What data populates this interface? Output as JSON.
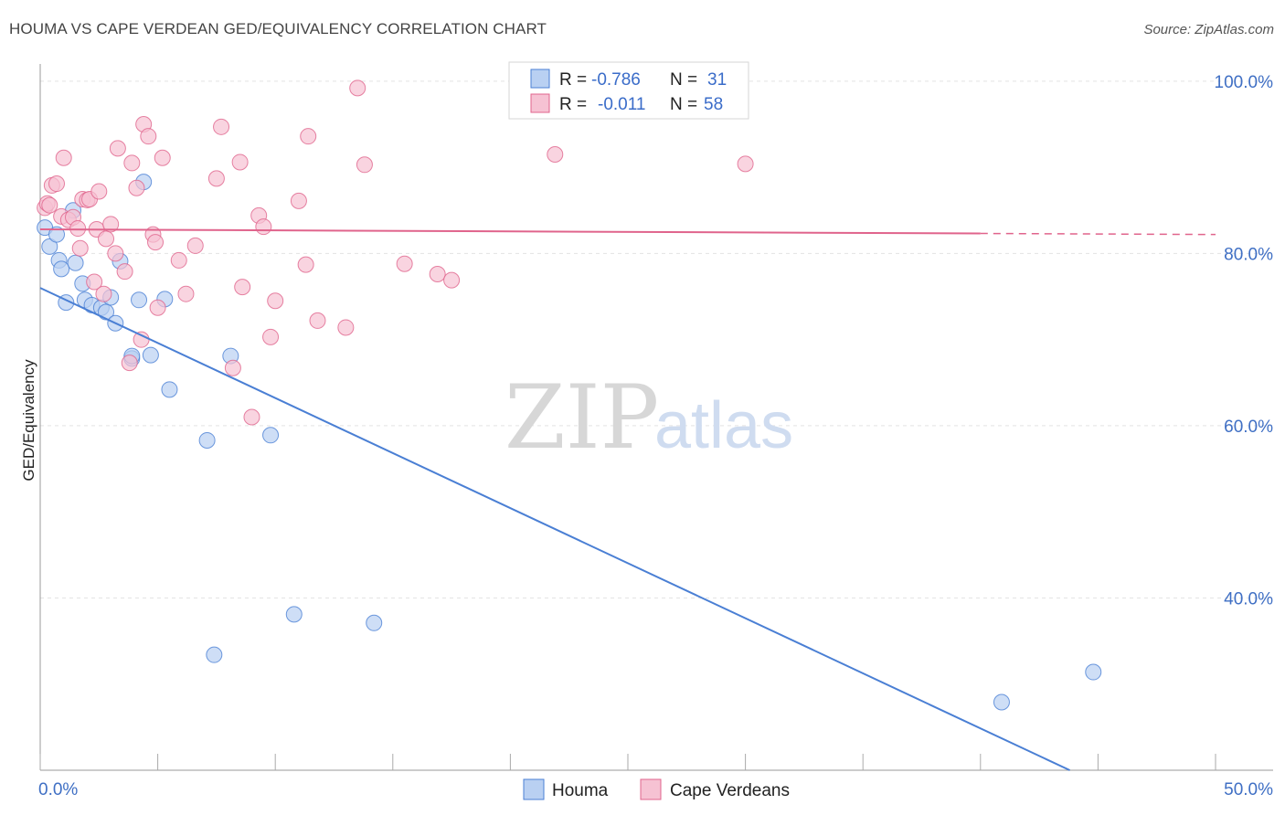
{
  "title": "HOUMA VS CAPE VERDEAN GED/EQUIVALENCY CORRELATION CHART",
  "source": "Source: ZipAtlas.com",
  "watermark": {
    "zip": "ZIP",
    "atlas": "atlas"
  },
  "chart_data": {
    "type": "scatter",
    "ylabel": "GED/Equivalency",
    "xlim": [
      0,
      50
    ],
    "ylim": [
      20,
      102
    ],
    "x_tick_labels": [
      {
        "value": 0,
        "label": "0.0%"
      },
      {
        "value": 50,
        "label": "50.0%"
      }
    ],
    "y_tick_labels": [
      {
        "value": 100,
        "label": "100.0%"
      },
      {
        "value": 80,
        "label": "80.0%"
      },
      {
        "value": 60,
        "label": "60.0%"
      },
      {
        "value": 40,
        "label": "40.0%"
      }
    ],
    "legend": [
      {
        "series": "Houma",
        "r_label": "R = ",
        "r_value": "-0.786",
        "n_label": "N = ",
        "n_value": "31"
      },
      {
        "series": "Cape Verdeans",
        "r_label": "R = ",
        "r_value": "-0.011",
        "n_label": "N = ",
        "n_value": "58"
      }
    ],
    "series": [
      {
        "name": "Houma",
        "color": "#4a7fd4",
        "fill": "#b9d0f2",
        "trend": {
          "x0": 0,
          "y0": 76.0,
          "x1": 43.8,
          "y1": 20.0,
          "dashed_from": null
        },
        "points": [
          [
            0.2,
            83.0
          ],
          [
            0.4,
            80.8
          ],
          [
            0.7,
            82.2
          ],
          [
            0.8,
            79.2
          ],
          [
            0.9,
            78.2
          ],
          [
            1.1,
            74.3
          ],
          [
            1.4,
            85.0
          ],
          [
            1.5,
            78.9
          ],
          [
            1.8,
            76.5
          ],
          [
            1.9,
            74.6
          ],
          [
            2.2,
            74.0
          ],
          [
            2.6,
            73.7
          ],
          [
            2.8,
            73.2
          ],
          [
            3.0,
            74.9
          ],
          [
            3.2,
            71.9
          ],
          [
            3.4,
            79.1
          ],
          [
            3.9,
            67.8
          ],
          [
            3.9,
            68.1
          ],
          [
            4.2,
            74.6
          ],
          [
            4.4,
            88.3
          ],
          [
            4.7,
            68.2
          ],
          [
            5.3,
            74.7
          ],
          [
            5.5,
            64.2
          ],
          [
            7.1,
            58.3
          ],
          [
            7.4,
            33.4
          ],
          [
            8.1,
            68.1
          ],
          [
            9.8,
            58.9
          ],
          [
            10.8,
            38.1
          ],
          [
            14.2,
            37.1
          ],
          [
            40.9,
            27.9
          ],
          [
            44.8,
            31.4
          ]
        ]
      },
      {
        "name": "Cape Verdeans",
        "color": "#e0648c",
        "fill": "#f6c2d3",
        "trend": {
          "x0": 0,
          "y0": 82.8,
          "x1": 50,
          "y1": 82.2,
          "dashed_from": 40.0
        },
        "points": [
          [
            0.2,
            85.3
          ],
          [
            0.3,
            85.8
          ],
          [
            0.4,
            85.6
          ],
          [
            0.5,
            87.9
          ],
          [
            0.7,
            88.1
          ],
          [
            0.9,
            84.3
          ],
          [
            1.0,
            91.1
          ],
          [
            1.2,
            83.9
          ],
          [
            1.4,
            84.2
          ],
          [
            1.6,
            82.9
          ],
          [
            1.7,
            80.6
          ],
          [
            1.8,
            86.3
          ],
          [
            2.0,
            86.2
          ],
          [
            2.1,
            86.3
          ],
          [
            2.3,
            76.7
          ],
          [
            2.4,
            82.8
          ],
          [
            2.5,
            87.2
          ],
          [
            2.7,
            75.3
          ],
          [
            2.8,
            81.7
          ],
          [
            3.0,
            83.4
          ],
          [
            3.2,
            80.0
          ],
          [
            3.3,
            92.2
          ],
          [
            3.6,
            77.9
          ],
          [
            3.8,
            67.3
          ],
          [
            3.9,
            90.5
          ],
          [
            4.1,
            87.6
          ],
          [
            4.3,
            70.0
          ],
          [
            4.4,
            95.0
          ],
          [
            4.6,
            93.6
          ],
          [
            4.8,
            82.2
          ],
          [
            4.9,
            81.3
          ],
          [
            5.0,
            73.7
          ],
          [
            5.2,
            91.1
          ],
          [
            5.9,
            79.2
          ],
          [
            6.2,
            75.3
          ],
          [
            6.6,
            80.9
          ],
          [
            7.5,
            88.7
          ],
          [
            7.7,
            94.7
          ],
          [
            8.2,
            66.7
          ],
          [
            8.5,
            90.6
          ],
          [
            8.6,
            76.1
          ],
          [
            9.0,
            61.0
          ],
          [
            9.3,
            84.4
          ],
          [
            9.5,
            83.1
          ],
          [
            9.8,
            70.3
          ],
          [
            10.0,
            74.5
          ],
          [
            11.0,
            86.1
          ],
          [
            11.3,
            78.7
          ],
          [
            11.4,
            93.6
          ],
          [
            11.8,
            72.2
          ],
          [
            13.0,
            71.4
          ],
          [
            13.5,
            99.2
          ],
          [
            13.8,
            90.3
          ],
          [
            15.5,
            78.8
          ],
          [
            16.9,
            77.6
          ],
          [
            17.5,
            76.9
          ],
          [
            21.9,
            91.5
          ],
          [
            30.0,
            90.4
          ]
        ]
      }
    ]
  }
}
